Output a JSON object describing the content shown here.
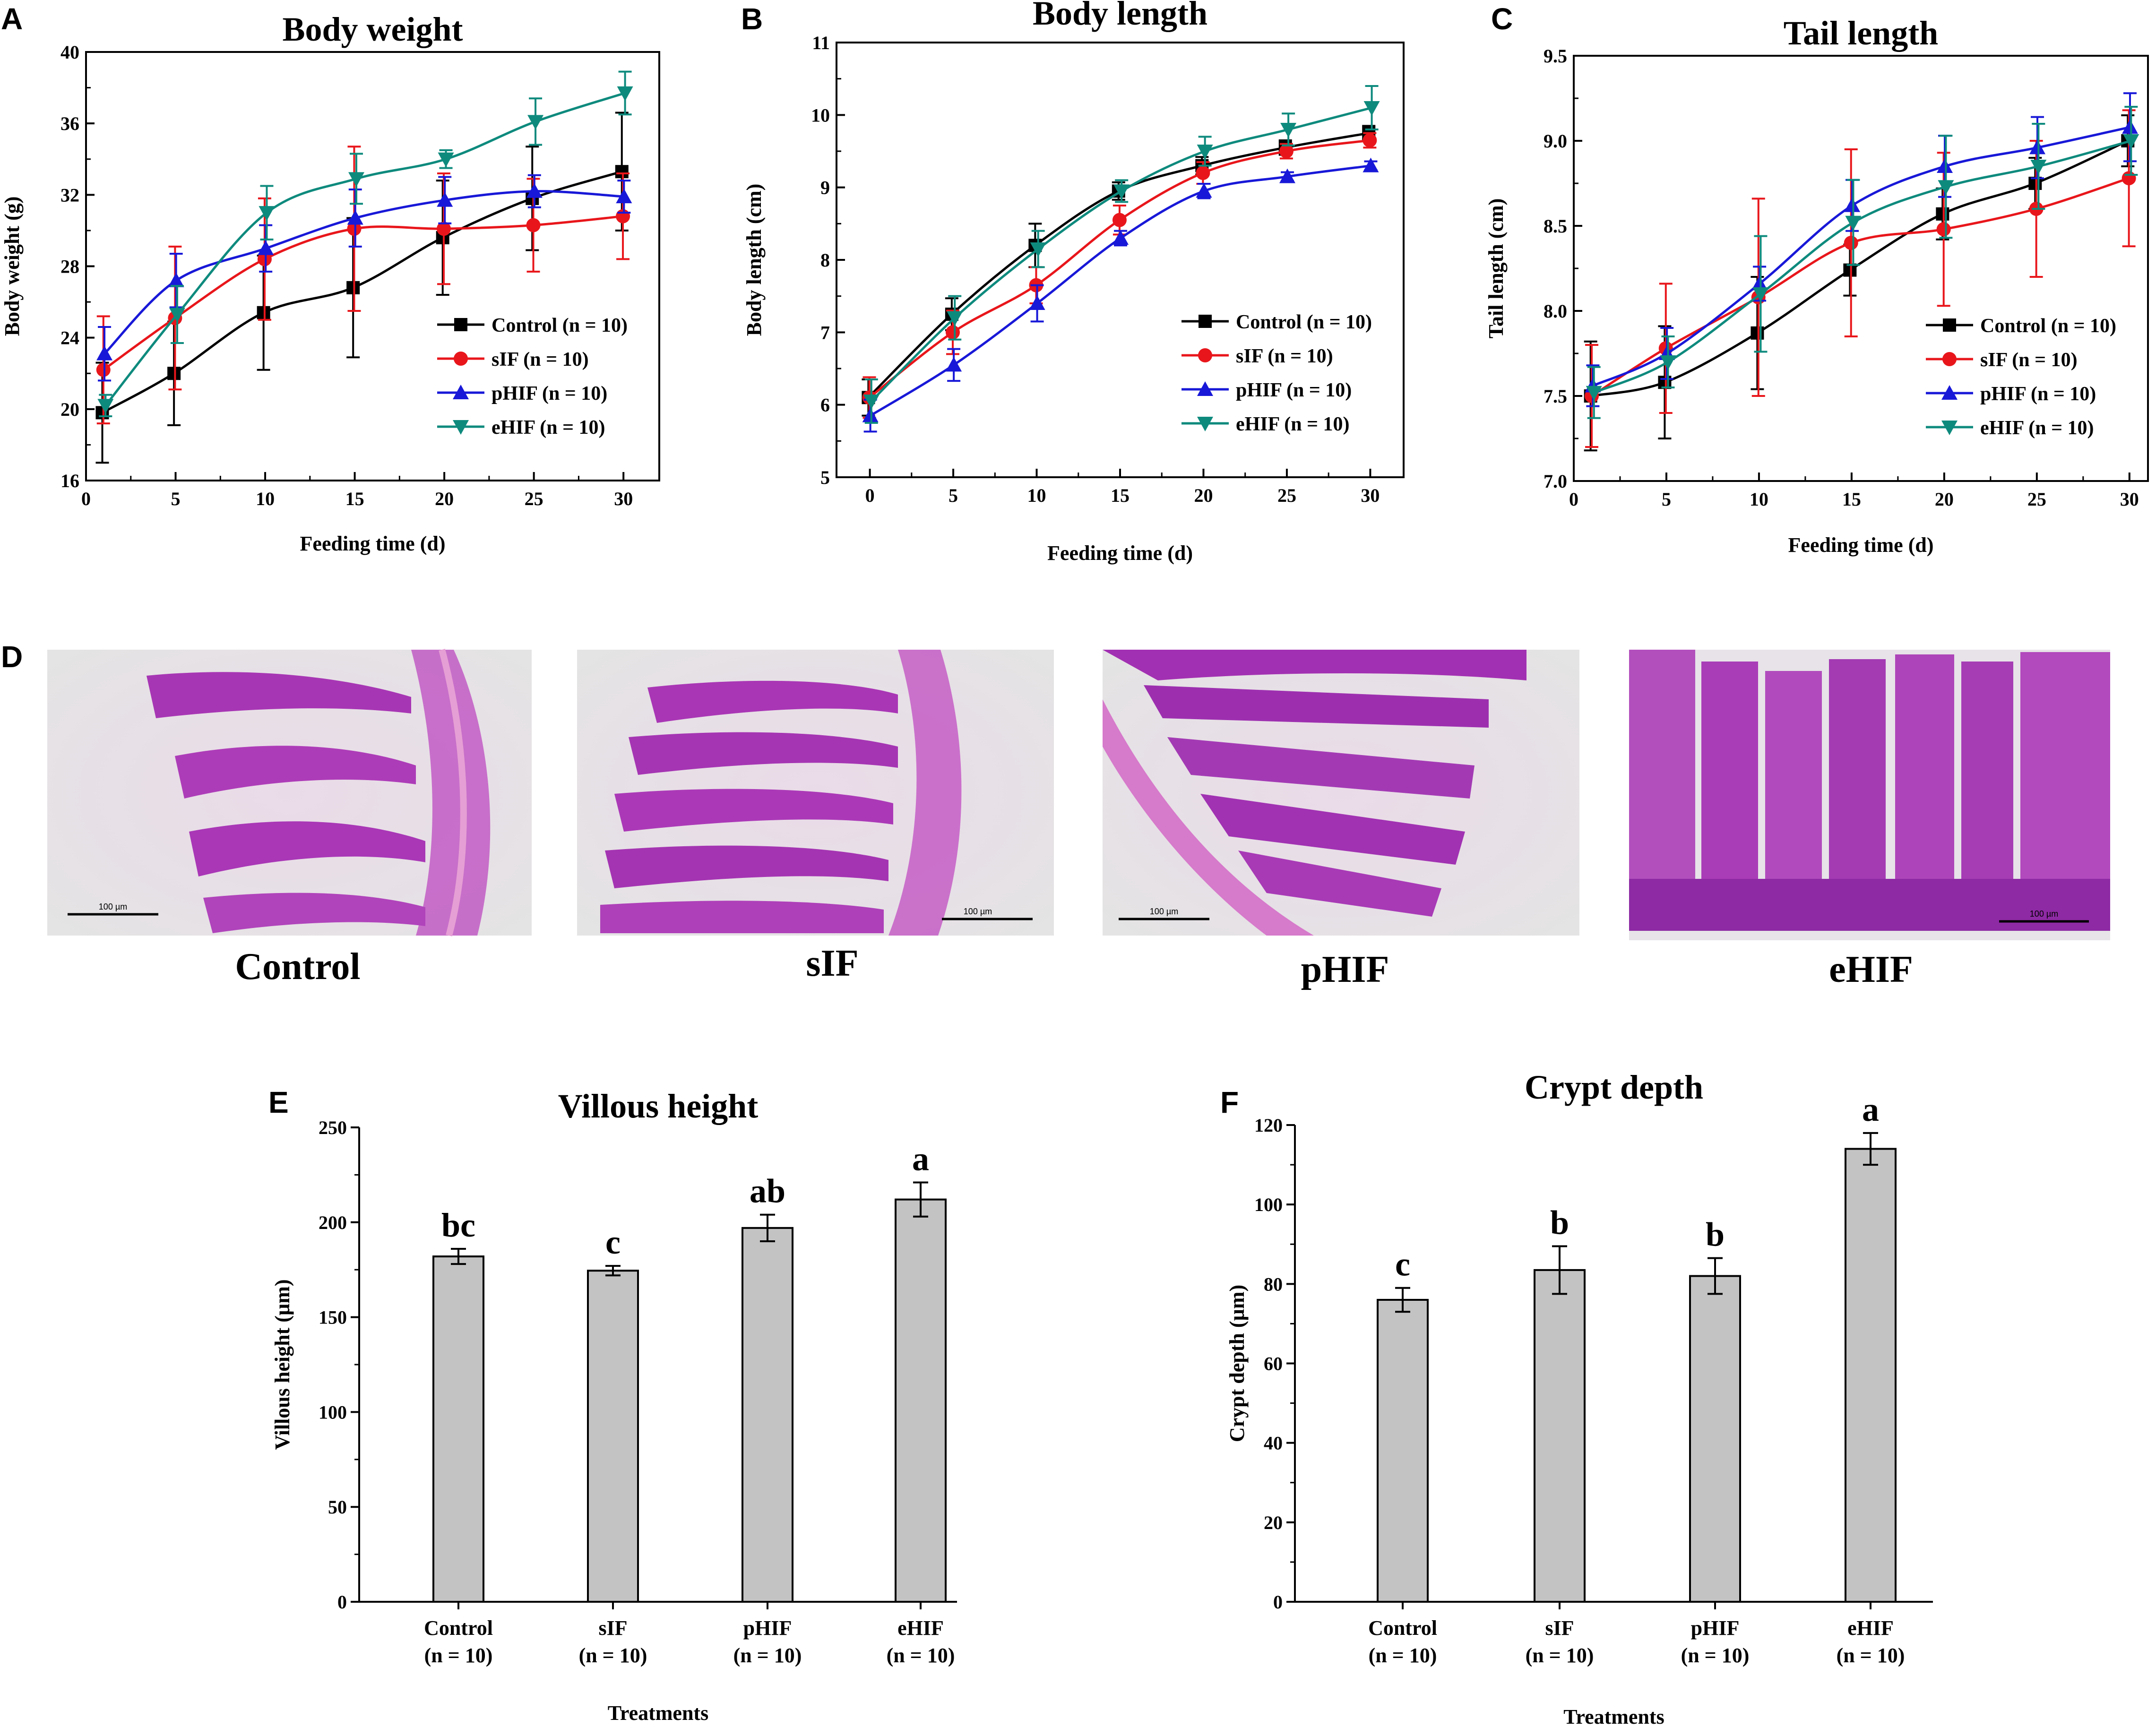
{
  "colors": {
    "Control": "#000000",
    "sIF": "#e8161b",
    "pHIF": "#1818d8",
    "eHIF": "#0e8a7d",
    "bar": "#c3c3c3"
  },
  "markers": {
    "Control": "square",
    "sIF": "circle",
    "pHIF": "triangle-up",
    "eHIF": "triangle-down"
  },
  "panels": {
    "A": {
      "letter": "A"
    },
    "B": {
      "letter": "B"
    },
    "C": {
      "letter": "C"
    },
    "D": {
      "letter": "D"
    },
    "E": {
      "letter": "E"
    },
    "F": {
      "letter": "F"
    }
  },
  "histology": {
    "scale_label": "100 µm",
    "captions": [
      "Control",
      "sIF",
      "pHIF",
      "eHIF"
    ]
  },
  "chart_data": [
    {
      "id": "A",
      "type": "line",
      "title": "Body weight",
      "xlabel": "Feeding time (d)",
      "ylabel": "Body weight (g)",
      "xlim": [
        0,
        32
      ],
      "ylim": [
        16,
        40
      ],
      "xticks": [
        0,
        5,
        10,
        15,
        20,
        25,
        30
      ],
      "yticks": [
        16,
        20,
        24,
        28,
        32,
        36,
        40
      ],
      "x": [
        1,
        5,
        10,
        15,
        20,
        25,
        30
      ],
      "legend_position": "lower-right",
      "series": [
        {
          "name": "Control",
          "label": "Control (n = 10)",
          "values": [
            19.8,
            22.0,
            25.4,
            26.8,
            29.6,
            31.8,
            33.3
          ],
          "errors": [
            2.8,
            2.9,
            3.2,
            3.9,
            3.2,
            2.9,
            3.3
          ]
        },
        {
          "name": "sIF",
          "label": "sIF (n = 10)",
          "values": [
            22.2,
            25.1,
            28.4,
            30.1,
            30.1,
            30.3,
            30.8
          ],
          "errors": [
            3.0,
            4.0,
            3.4,
            4.6,
            3.1,
            2.6,
            2.4
          ]
        },
        {
          "name": "pHIF",
          "label": "pHIF (n = 10)",
          "values": [
            23.1,
            27.2,
            29.0,
            30.7,
            31.7,
            32.2,
            31.9
          ],
          "errors": [
            1.5,
            1.5,
            1.3,
            1.6,
            1.3,
            0.9,
            0.9
          ]
        },
        {
          "name": "eHIF",
          "label": "eHIF (n = 10)",
          "values": [
            20.2,
            25.3,
            31.0,
            32.9,
            34.0,
            36.1,
            37.7
          ],
          "errors": [
            0.6,
            1.6,
            1.5,
            1.4,
            0.5,
            1.3,
            1.2
          ]
        }
      ]
    },
    {
      "id": "B",
      "type": "line",
      "title": "Body length",
      "xlabel": "Feeding time (d)",
      "ylabel": "Body length (cm)",
      "xlim": [
        -2,
        32
      ],
      "ylim": [
        5,
        11
      ],
      "xticks": [
        0,
        5,
        10,
        15,
        20,
        25,
        30
      ],
      "yticks": [
        5,
        6,
        7,
        8,
        9,
        10,
        11
      ],
      "x": [
        0,
        5,
        10,
        15,
        20,
        25,
        30
      ],
      "legend_position": "lower-right",
      "series": [
        {
          "name": "Control",
          "label": "Control (n = 10)",
          "values": [
            6.1,
            7.25,
            8.2,
            8.95,
            9.3,
            9.55,
            9.75
          ],
          "errors": [
            0.25,
            0.22,
            0.3,
            0.12,
            0.12,
            0.1,
            0.1
          ]
        },
        {
          "name": "sIF",
          "label": "sIF (n = 10)",
          "values": [
            6.1,
            7.0,
            7.65,
            8.55,
            9.2,
            9.5,
            9.65
          ],
          "errors": [
            0.28,
            0.3,
            0.25,
            0.2,
            0.15,
            0.1,
            0.1
          ]
        },
        {
          "name": "pHIF",
          "label": "pHIF (n = 10)",
          "values": [
            5.85,
            6.55,
            7.4,
            8.3,
            8.95,
            9.15,
            9.3
          ],
          "errors": [
            0.22,
            0.22,
            0.25,
            0.1,
            0.1,
            0.06,
            0.06
          ]
        },
        {
          "name": "eHIF",
          "label": "eHIF (n = 10)",
          "values": [
            6.05,
            7.2,
            8.15,
            8.95,
            9.5,
            9.8,
            10.1
          ],
          "errors": [
            0.3,
            0.3,
            0.25,
            0.15,
            0.2,
            0.22,
            0.3
          ]
        }
      ]
    },
    {
      "id": "C",
      "type": "line",
      "title": "Tail length",
      "xlabel": "Feeding time (d)",
      "ylabel": "Tail length (cm)",
      "xlim": [
        0,
        31
      ],
      "ylim": [
        7.0,
        9.5
      ],
      "xticks": [
        0,
        5,
        10,
        15,
        20,
        25,
        30
      ],
      "yticks": [
        "7.0",
        "7.5",
        "8.0",
        "8.5",
        "9.0",
        "9.5"
      ],
      "x": [
        1,
        5,
        10,
        15,
        20,
        25,
        30
      ],
      "legend_position": "lower-right",
      "series": [
        {
          "name": "Control",
          "label": "Control (n = 10)",
          "values": [
            7.5,
            7.58,
            7.87,
            8.24,
            8.57,
            8.75,
            9.0
          ],
          "errors": [
            0.32,
            0.33,
            0.33,
            0.15,
            0.15,
            0.15,
            0.15
          ]
        },
        {
          "name": "sIF",
          "label": "sIF (n = 10)",
          "values": [
            7.5,
            7.78,
            8.08,
            8.4,
            8.48,
            8.6,
            8.78
          ],
          "errors": [
            0.3,
            0.38,
            0.58,
            0.55,
            0.45,
            0.4,
            0.4
          ]
        },
        {
          "name": "pHIF",
          "label": "pHIF (n = 10)",
          "values": [
            7.56,
            7.75,
            8.16,
            8.62,
            8.85,
            8.96,
            9.08
          ],
          "errors": [
            0.12,
            0.15,
            0.1,
            0.15,
            0.18,
            0.18,
            0.2
          ]
        },
        {
          "name": "eHIF",
          "label": "eHIF (n = 10)",
          "values": [
            7.52,
            7.7,
            8.1,
            8.52,
            8.73,
            8.85,
            9.0
          ],
          "errors": [
            0.15,
            0.15,
            0.34,
            0.25,
            0.3,
            0.25,
            0.2
          ]
        }
      ]
    },
    {
      "id": "E",
      "type": "bar",
      "title": "Villous height",
      "xlabel": "Treatments",
      "ylabel": "Villous height (µm)",
      "ylim": [
        0,
        250
      ],
      "yticks": [
        0,
        50,
        100,
        150,
        200,
        250
      ],
      "categories": [
        {
          "name": "Control",
          "n": "(n = 10)"
        },
        {
          "name": "sIF",
          "n": "(n = 10)"
        },
        {
          "name": "pHIF",
          "n": "(n = 10)"
        },
        {
          "name": "eHIF",
          "n": "(n = 10)"
        }
      ],
      "values": [
        182,
        174.5,
        197,
        212
      ],
      "errors": [
        4,
        2.5,
        7,
        9
      ],
      "letters": [
        "bc",
        "c",
        "ab",
        "a"
      ]
    },
    {
      "id": "F",
      "type": "bar",
      "title": "Crypt depth",
      "xlabel": "Treatments",
      "ylabel": "Crypt depth (µm)",
      "ylim": [
        0,
        120
      ],
      "yticks": [
        0,
        20,
        40,
        60,
        80,
        100,
        120
      ],
      "categories": [
        {
          "name": "Control",
          "n": "(n = 10)"
        },
        {
          "name": "sIF",
          "n": "(n = 10)"
        },
        {
          "name": "pHIF",
          "n": "(n = 10)"
        },
        {
          "name": "eHIF",
          "n": "(n = 10)"
        }
      ],
      "values": [
        76,
        83.5,
        82,
        114
      ],
      "errors": [
        3,
        6,
        4.5,
        4
      ],
      "letters": [
        "c",
        "b",
        "b",
        "a"
      ]
    }
  ]
}
